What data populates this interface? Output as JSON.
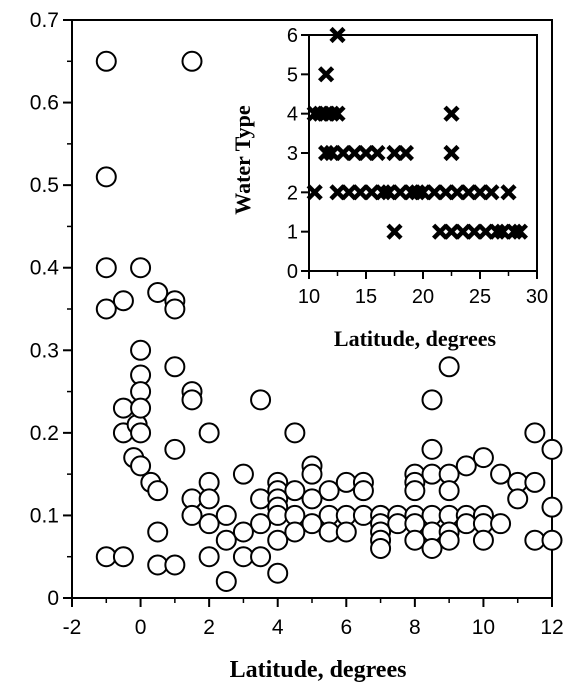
{
  "chart_data": [
    {
      "type": "scatter",
      "xlabel": "Latitude, degrees",
      "ylabel": "",
      "xlim": [
        -2,
        12
      ],
      "ylim": [
        0,
        0.7
      ],
      "xticks": [
        "-2",
        "0",
        "2",
        "4",
        "6",
        "8",
        "10",
        "12"
      ],
      "yticks": [
        "0",
        "0.1",
        "0.2",
        "0.3",
        "0.4",
        "0.5",
        "0.6",
        "0.7"
      ],
      "marker": "open-circle",
      "points": [
        [
          -1.0,
          0.65
        ],
        [
          -1.0,
          0.51
        ],
        [
          -1.0,
          0.4
        ],
        [
          -1.0,
          0.35
        ],
        [
          -1.0,
          0.05
        ],
        [
          -0.5,
          0.36
        ],
        [
          -0.5,
          0.23
        ],
        [
          -0.5,
          0.2
        ],
        [
          -0.5,
          0.05
        ],
        [
          -0.2,
          0.17
        ],
        [
          -0.1,
          0.21
        ],
        [
          0.0,
          0.4
        ],
        [
          0.0,
          0.3
        ],
        [
          0.0,
          0.27
        ],
        [
          0.0,
          0.25
        ],
        [
          0.0,
          0.23
        ],
        [
          0.0,
          0.2
        ],
        [
          0.0,
          0.16
        ],
        [
          0.3,
          0.14
        ],
        [
          0.5,
          0.13
        ],
        [
          0.5,
          0.08
        ],
        [
          0.5,
          0.04
        ],
        [
          0.5,
          0.37
        ],
        [
          1.0,
          0.36
        ],
        [
          1.0,
          0.35
        ],
        [
          1.0,
          0.28
        ],
        [
          1.0,
          0.18
        ],
        [
          1.0,
          0.04
        ],
        [
          1.5,
          0.65
        ],
        [
          1.5,
          0.25
        ],
        [
          1.5,
          0.24
        ],
        [
          1.5,
          0.12
        ],
        [
          1.5,
          0.1
        ],
        [
          2.0,
          0.2
        ],
        [
          2.0,
          0.14
        ],
        [
          2.0,
          0.12
        ],
        [
          2.0,
          0.09
        ],
        [
          2.0,
          0.05
        ],
        [
          2.5,
          0.1
        ],
        [
          2.5,
          0.07
        ],
        [
          2.5,
          0.02
        ],
        [
          3.0,
          0.15
        ],
        [
          3.0,
          0.08
        ],
        [
          3.0,
          0.05
        ],
        [
          3.5,
          0.24
        ],
        [
          3.5,
          0.12
        ],
        [
          3.5,
          0.09
        ],
        [
          3.5,
          0.05
        ],
        [
          4.0,
          0.14
        ],
        [
          4.0,
          0.13
        ],
        [
          4.0,
          0.12
        ],
        [
          4.0,
          0.11
        ],
        [
          4.0,
          0.1
        ],
        [
          4.0,
          0.07
        ],
        [
          4.0,
          0.03
        ],
        [
          4.5,
          0.2
        ],
        [
          4.5,
          0.13
        ],
        [
          4.5,
          0.1
        ],
        [
          4.5,
          0.08
        ],
        [
          5.0,
          0.16
        ],
        [
          5.0,
          0.15
        ],
        [
          5.0,
          0.12
        ],
        [
          5.0,
          0.09
        ],
        [
          5.5,
          0.13
        ],
        [
          5.5,
          0.1
        ],
        [
          5.5,
          0.08
        ],
        [
          6.0,
          0.14
        ],
        [
          6.0,
          0.1
        ],
        [
          6.0,
          0.08
        ],
        [
          6.5,
          0.14
        ],
        [
          6.5,
          0.13
        ],
        [
          6.5,
          0.1
        ],
        [
          7.0,
          0.1
        ],
        [
          7.0,
          0.09
        ],
        [
          7.0,
          0.08
        ],
        [
          7.0,
          0.07
        ],
        [
          7.0,
          0.06
        ],
        [
          7.5,
          0.1
        ],
        [
          7.5,
          0.09
        ],
        [
          8.0,
          0.15
        ],
        [
          8.0,
          0.14
        ],
        [
          8.0,
          0.13
        ],
        [
          8.0,
          0.1
        ],
        [
          8.0,
          0.09
        ],
        [
          8.0,
          0.07
        ],
        [
          8.5,
          0.24
        ],
        [
          8.5,
          0.18
        ],
        [
          8.5,
          0.15
        ],
        [
          8.5,
          0.1
        ],
        [
          8.5,
          0.08
        ],
        [
          8.5,
          0.06
        ],
        [
          9.0,
          0.28
        ],
        [
          9.0,
          0.15
        ],
        [
          9.0,
          0.13
        ],
        [
          9.0,
          0.1
        ],
        [
          9.0,
          0.08
        ],
        [
          9.0,
          0.07
        ],
        [
          9.5,
          0.16
        ],
        [
          9.5,
          0.1
        ],
        [
          9.5,
          0.09
        ],
        [
          10.0,
          0.17
        ],
        [
          10.0,
          0.1
        ],
        [
          10.0,
          0.09
        ],
        [
          10.0,
          0.07
        ],
        [
          10.5,
          0.15
        ],
        [
          10.5,
          0.09
        ],
        [
          11.0,
          0.14
        ],
        [
          11.0,
          0.12
        ],
        [
          11.5,
          0.2
        ],
        [
          11.5,
          0.14
        ],
        [
          11.5,
          0.07
        ],
        [
          12.0,
          0.18
        ],
        [
          12.0,
          0.11
        ],
        [
          12.0,
          0.07
        ]
      ]
    },
    {
      "type": "scatter",
      "xlabel": "Latitude, degrees",
      "ylabel": "Water Type",
      "xlim": [
        10,
        30
      ],
      "ylim": [
        0,
        6
      ],
      "xticks": [
        "10",
        "15",
        "20",
        "25",
        "30"
      ],
      "yticks": [
        "0",
        "1",
        "2",
        "3",
        "4",
        "5",
        "6"
      ],
      "marker": "x",
      "points": [
        [
          10.5,
          4
        ],
        [
          10.5,
          2
        ],
        [
          11.0,
          4
        ],
        [
          11.5,
          5
        ],
        [
          11.5,
          4
        ],
        [
          11.5,
          3
        ],
        [
          12.0,
          4
        ],
        [
          12.0,
          3
        ],
        [
          12.5,
          6
        ],
        [
          12.5,
          4
        ],
        [
          12.5,
          2
        ],
        [
          13.0,
          3
        ],
        [
          13.5,
          2
        ],
        [
          14.0,
          3
        ],
        [
          14.5,
          2
        ],
        [
          15.0,
          3
        ],
        [
          15.5,
          2
        ],
        [
          16.0,
          3
        ],
        [
          16.5,
          2
        ],
        [
          17.0,
          2
        ],
        [
          17.5,
          3
        ],
        [
          17.5,
          1
        ],
        [
          18.0,
          2
        ],
        [
          18.5,
          3
        ],
        [
          19.0,
          2
        ],
        [
          19.5,
          2
        ],
        [
          20.0,
          2
        ],
        [
          21.0,
          2
        ],
        [
          21.5,
          1
        ],
        [
          22.0,
          2
        ],
        [
          22.5,
          4
        ],
        [
          22.5,
          3
        ],
        [
          22.5,
          1
        ],
        [
          23.0,
          2
        ],
        [
          23.5,
          1
        ],
        [
          24.0,
          2
        ],
        [
          24.5,
          1
        ],
        [
          25.0,
          2
        ],
        [
          25.5,
          1
        ],
        [
          26.0,
          2
        ],
        [
          26.5,
          1
        ],
        [
          27.0,
          1
        ],
        [
          27.5,
          2
        ],
        [
          28.0,
          1
        ],
        [
          28.5,
          1
        ]
      ]
    }
  ]
}
